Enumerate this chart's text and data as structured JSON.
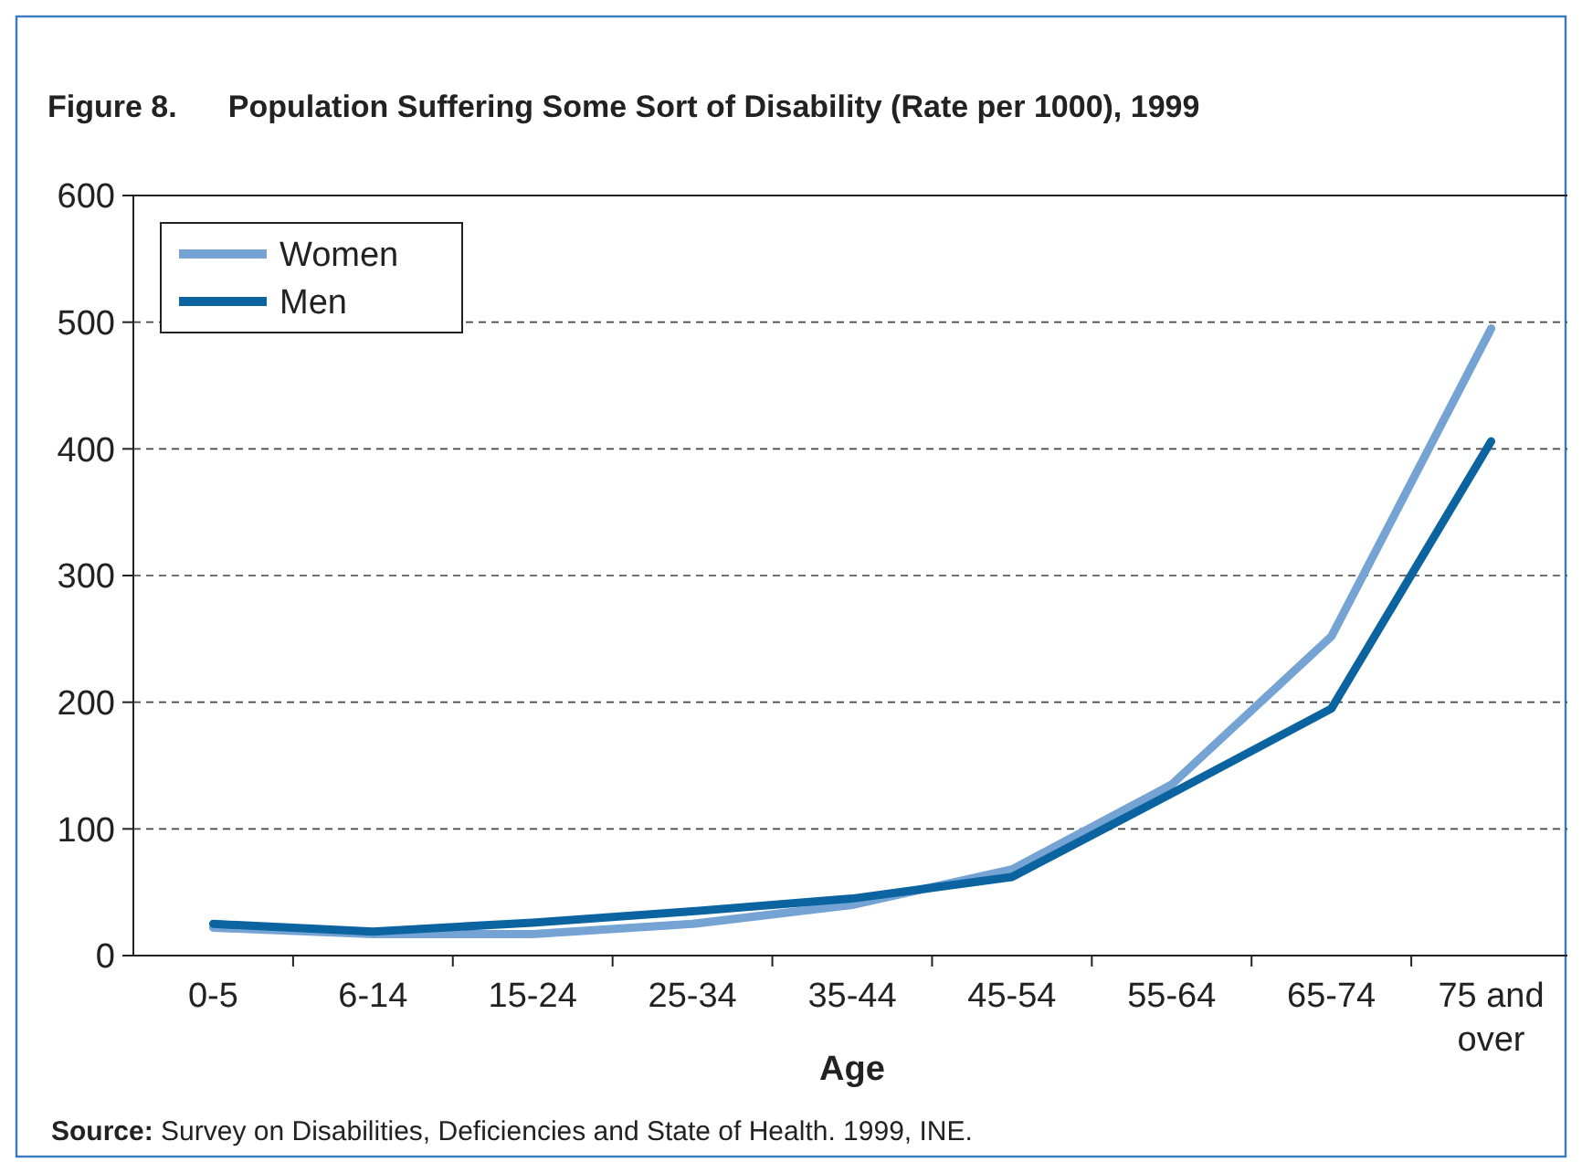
{
  "chart_data": {
    "type": "line",
    "title": "Figure 8.    Population Suffering Some Sort of Disability (Rate per 1000), 1999",
    "xlabel": "Age",
    "categories": [
      "0-5",
      "6-14",
      "15-24",
      "25-34",
      "35-44",
      "45-54",
      "55-64",
      "65-74",
      "75 and over"
    ],
    "series": [
      {
        "name": "Women",
        "color": "#74a3d4",
        "values": [
          22,
          17,
          17,
          25,
          40,
          68,
          135,
          252,
          495
        ]
      },
      {
        "name": "Men",
        "color": "#0b64a0",
        "values": [
          25,
          19,
          26,
          35,
          45,
          62,
          128,
          195,
          406
        ]
      }
    ],
    "ylim": [
      0,
      600
    ],
    "yticks": [
      0,
      100,
      200,
      300,
      400,
      500,
      600
    ],
    "grid": "y",
    "legend": "top left",
    "line_style": "solid",
    "marker": "none",
    "annotations": [
      "Source: Survey on Disabilities, Deficiencies and State of Health. 1999, INE."
    ]
  }
}
